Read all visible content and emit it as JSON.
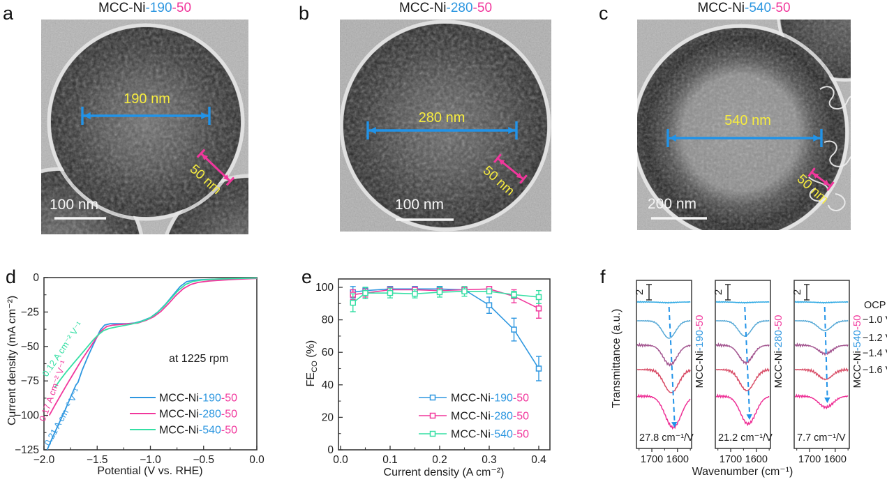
{
  "figure_letters": {
    "a": "a",
    "b": "b",
    "c": "c",
    "d": "d",
    "e": "e",
    "f": "f"
  },
  "colors": {
    "text": "#1a1a1a",
    "blue": "#2e97e0",
    "magenta": "#f1379c",
    "green": "#35dfa4",
    "yellow": "#f7ec3f",
    "arrow_blue": "#2193e8",
    "ftir": [
      "#2aa7e3",
      "#55a8d6",
      "#a2548f",
      "#d84c66",
      "#ee2e95"
    ]
  },
  "panels": {
    "a": {
      "title": {
        "prefix": "MCC-Ni",
        "size": "-190",
        "shell": "-50"
      },
      "diameter_label": "190 nm",
      "shell_label": "50 nm",
      "scalebar_label": "100 nm"
    },
    "b": {
      "title": {
        "prefix": "MCC-Ni",
        "size": "-280",
        "shell": "-50"
      },
      "diameter_label": "280 nm",
      "shell_label": "50 nm",
      "scalebar_label": "100 nm"
    },
    "c": {
      "title": {
        "prefix": "MCC-Ni",
        "size": "-540",
        "shell": "-50"
      },
      "diameter_label": "540 nm",
      "shell_label": "50 nm",
      "scalebar_label": "200 nm"
    }
  },
  "chart_data": [
    {
      "id": "d",
      "type": "line",
      "xlabel": "Potential (V vs. RHE)",
      "ylabel": "Current density (mA cm⁻²)",
      "xlim": [
        -2.0,
        0.0
      ],
      "ylim": [
        -125,
        0
      ],
      "xticks": [
        "−2.0",
        "−1.5",
        "−1.0",
        "−0.5",
        "0.0"
      ],
      "xtick_vals": [
        -2.0,
        -1.5,
        -1.0,
        -0.5,
        0.0
      ],
      "yticks": [
        "0",
        "−25",
        "−50",
        "−75",
        "−100",
        "−125"
      ],
      "ytick_vals": [
        0,
        -25,
        -50,
        -75,
        -100,
        -125
      ],
      "grid": false,
      "legend_position": "lower right",
      "annotation": "at 1225 rpm",
      "slope_labels": [
        {
          "text": "0.12 A cm⁻² V⁻¹",
          "color_key": "green"
        },
        {
          "text": "0.17 A cm⁻² V⁻¹",
          "color_key": "magenta"
        },
        {
          "text": "0.21 A cm⁻² V⁻¹",
          "color_key": "blue"
        }
      ],
      "series": [
        {
          "name": {
            "prefix": "MCC-Ni",
            "size": "-190",
            "shell": "-50"
          },
          "color_key": "blue",
          "points": [
            [
              -1.97,
              -125
            ],
            [
              -1.92,
              -116
            ],
            [
              -1.86,
              -106
            ],
            [
              -1.8,
              -96
            ],
            [
              -1.74,
              -85
            ],
            [
              -1.7,
              -78
            ],
            [
              -1.68,
              -76
            ],
            [
              -1.64,
              -67
            ],
            [
              -1.58,
              -56
            ],
            [
              -1.52,
              -46
            ],
            [
              -1.47,
              -38
            ],
            [
              -1.43,
              -34.5
            ],
            [
              -1.38,
              -33.5
            ],
            [
              -1.3,
              -33.5
            ],
            [
              -1.22,
              -33.5
            ],
            [
              -1.15,
              -33
            ],
            [
              -1.08,
              -31.5
            ],
            [
              -1.0,
              -29
            ],
            [
              -0.93,
              -25
            ],
            [
              -0.86,
              -19.5
            ],
            [
              -0.79,
              -13
            ],
            [
              -0.72,
              -6.5
            ],
            [
              -0.66,
              -3
            ],
            [
              -0.6,
              -2
            ],
            [
              -0.52,
              -1.5
            ],
            [
              -0.4,
              -1.2
            ],
            [
              -0.25,
              -0.9
            ],
            [
              -0.1,
              -0.6
            ],
            [
              0,
              -0.4
            ]
          ]
        },
        {
          "name": {
            "prefix": "MCC-Ni",
            "size": "-280",
            "shell": "-50"
          },
          "color_key": "magenta",
          "points": [
            [
              -1.95,
              -100
            ],
            [
              -1.9,
              -93
            ],
            [
              -1.84,
              -85
            ],
            [
              -1.78,
              -77
            ],
            [
              -1.71,
              -68
            ],
            [
              -1.64,
              -59
            ],
            [
              -1.57,
              -51
            ],
            [
              -1.51,
              -44
            ],
            [
              -1.46,
              -38.5
            ],
            [
              -1.41,
              -35.5
            ],
            [
              -1.35,
              -34.5
            ],
            [
              -1.28,
              -34
            ],
            [
              -1.2,
              -33.5
            ],
            [
              -1.12,
              -33
            ],
            [
              -1.04,
              -31
            ],
            [
              -0.97,
              -28.5
            ],
            [
              -0.9,
              -24.5
            ],
            [
              -0.83,
              -19
            ],
            [
              -0.76,
              -13
            ],
            [
              -0.69,
              -8
            ],
            [
              -0.62,
              -5
            ],
            [
              -0.55,
              -3.5
            ],
            [
              -0.45,
              -2.5
            ],
            [
              -0.32,
              -1.8
            ],
            [
              -0.18,
              -1.2
            ],
            [
              0,
              -0.6
            ]
          ]
        },
        {
          "name": {
            "prefix": "MCC-Ni",
            "size": "-540",
            "shell": "-50"
          },
          "color_key": "green",
          "points": [
            [
              -1.9,
              -80
            ],
            [
              -1.85,
              -74.5
            ],
            [
              -1.79,
              -68.5
            ],
            [
              -1.72,
              -62
            ],
            [
              -1.66,
              -56.5
            ],
            [
              -1.6,
              -51
            ],
            [
              -1.54,
              -45.5
            ],
            [
              -1.49,
              -41.5
            ],
            [
              -1.44,
              -38.5
            ],
            [
              -1.39,
              -37
            ],
            [
              -1.33,
              -36
            ],
            [
              -1.26,
              -35
            ],
            [
              -1.18,
              -33.8
            ],
            [
              -1.1,
              -32.3
            ],
            [
              -1.02,
              -30
            ],
            [
              -0.95,
              -26.5
            ],
            [
              -0.88,
              -21.5
            ],
            [
              -0.81,
              -15.5
            ],
            [
              -0.74,
              -9.5
            ],
            [
              -0.67,
              -5
            ],
            [
              -0.6,
              -2.8
            ],
            [
              -0.52,
              -1.8
            ],
            [
              -0.4,
              -1.2
            ],
            [
              -0.25,
              -0.8
            ],
            [
              -0.1,
              -0.5
            ],
            [
              0,
              -0.3
            ]
          ]
        }
      ]
    },
    {
      "id": "e",
      "type": "scatter",
      "xlabel": "Current density (A cm⁻²)",
      "ylabel_parts": {
        "main": "FE",
        "sub": "CO",
        "unit": " (%)"
      },
      "xlim": [
        0,
        0.425
      ],
      "ylim": [
        0,
        105
      ],
      "xticks": [
        "0.0",
        "0.1",
        "0.2",
        "0.3",
        "0.4"
      ],
      "xtick_vals": [
        0,
        0.1,
        0.2,
        0.3,
        0.4
      ],
      "yticks": [
        "0",
        "20",
        "40",
        "60",
        "80",
        "100"
      ],
      "ytick_vals": [
        0,
        20,
        40,
        60,
        80,
        100
      ],
      "grid": false,
      "legend_position": "lower right",
      "x": [
        0.025,
        0.05,
        0.1,
        0.15,
        0.2,
        0.25,
        0.3,
        0.35,
        0.4
      ],
      "series": [
        {
          "name": {
            "prefix": "MCC-Ni",
            "size": "-190",
            "shell": "-50"
          },
          "color_key": "blue",
          "values": [
            97,
            98,
            99,
            99,
            99,
            98.5,
            89,
            74,
            50
          ],
          "errors": [
            3.5,
            2,
            1.5,
            1.5,
            1.5,
            1.5,
            5,
            7,
            7.5
          ]
        },
        {
          "name": {
            "prefix": "MCC-Ni",
            "size": "-280",
            "shell": "-50"
          },
          "color_key": "magenta",
          "values": [
            95.5,
            96.5,
            98.5,
            98.5,
            98,
            98.5,
            99,
            94.5,
            87
          ],
          "errors": [
            3,
            2.5,
            1.5,
            1.5,
            1.5,
            1,
            1,
            4,
            6
          ]
        },
        {
          "name": {
            "prefix": "MCC-Ni",
            "size": "-540",
            "shell": "-50"
          },
          "color_key": "green",
          "values": [
            90.5,
            96.5,
            96.5,
            96,
            97,
            97.5,
            97.5,
            95.5,
            94
          ],
          "errors": [
            5.5,
            3.5,
            3,
            2.5,
            3,
            3,
            1.5,
            2,
            4
          ]
        }
      ]
    },
    {
      "id": "f",
      "type": "line",
      "xlabel": "Wavenumber (cm⁻¹)",
      "ylabel": "Transmittance (a.u.)",
      "x_range": [
        1760,
        1545
      ],
      "xticks": [
        "1700",
        "1600"
      ],
      "xtick_vals": [
        1700,
        1600
      ],
      "minor_ticks": [
        1750,
        1650,
        1550
      ],
      "scalebar_label": "2",
      "potential_labels": [
        "OCP",
        "−1.0 V",
        "−1.2 V",
        "−1.4 V",
        "−1.6 V"
      ],
      "subpanels": [
        {
          "sample": {
            "prefix": "MCC-Ni",
            "size": "-190",
            "shell": "-50"
          },
          "shift_label": "27.8 cm⁻¹/V",
          "curves": [
            {
              "label": "OCP",
              "center": 1638,
              "depth": 1,
              "width": 40
            },
            {
              "label": "-1.0 V",
              "center": 1633,
              "depth": 25,
              "width": 36
            },
            {
              "label": "-1.2 V",
              "center": 1629,
              "depth": 28,
              "width": 38
            },
            {
              "label": "-1.4 V",
              "center": 1624,
              "depth": 33,
              "width": 40
            },
            {
              "label": "-1.6 V",
              "center": 1617,
              "depth": 45,
              "width": 44
            }
          ]
        },
        {
          "sample": {
            "prefix": "MCC-Ni",
            "size": "-280",
            "shell": "-50"
          },
          "shift_label": "21.2 cm⁻¹/V",
          "curves": [
            {
              "label": "OCP",
              "center": 1650,
              "depth": 1,
              "width": 40
            },
            {
              "label": "-1.0 V",
              "center": 1645,
              "depth": 22,
              "width": 36
            },
            {
              "label": "-1.2 V",
              "center": 1641,
              "depth": 25,
              "width": 38
            },
            {
              "label": "-1.4 V",
              "center": 1637,
              "depth": 30,
              "width": 40
            },
            {
              "label": "-1.6 V",
              "center": 1632,
              "depth": 40,
              "width": 42
            }
          ]
        },
        {
          "sample": {
            "prefix": "MCC-Ni",
            "size": "-540",
            "shell": "-50"
          },
          "shift_label": "7.7 cm⁻¹/V",
          "curves": [
            {
              "label": "OCP",
              "center": 1642,
              "depth": 1,
              "width": 40
            },
            {
              "label": "-1.0 V",
              "center": 1641,
              "depth": 14,
              "width": 38
            },
            {
              "label": "-1.2 V",
              "center": 1639,
              "depth": 12,
              "width": 38
            },
            {
              "label": "-1.4 V",
              "center": 1638,
              "depth": 14,
              "width": 38
            },
            {
              "label": "-1.6 V",
              "center": 1636,
              "depth": 16,
              "width": 40
            }
          ]
        }
      ]
    }
  ]
}
